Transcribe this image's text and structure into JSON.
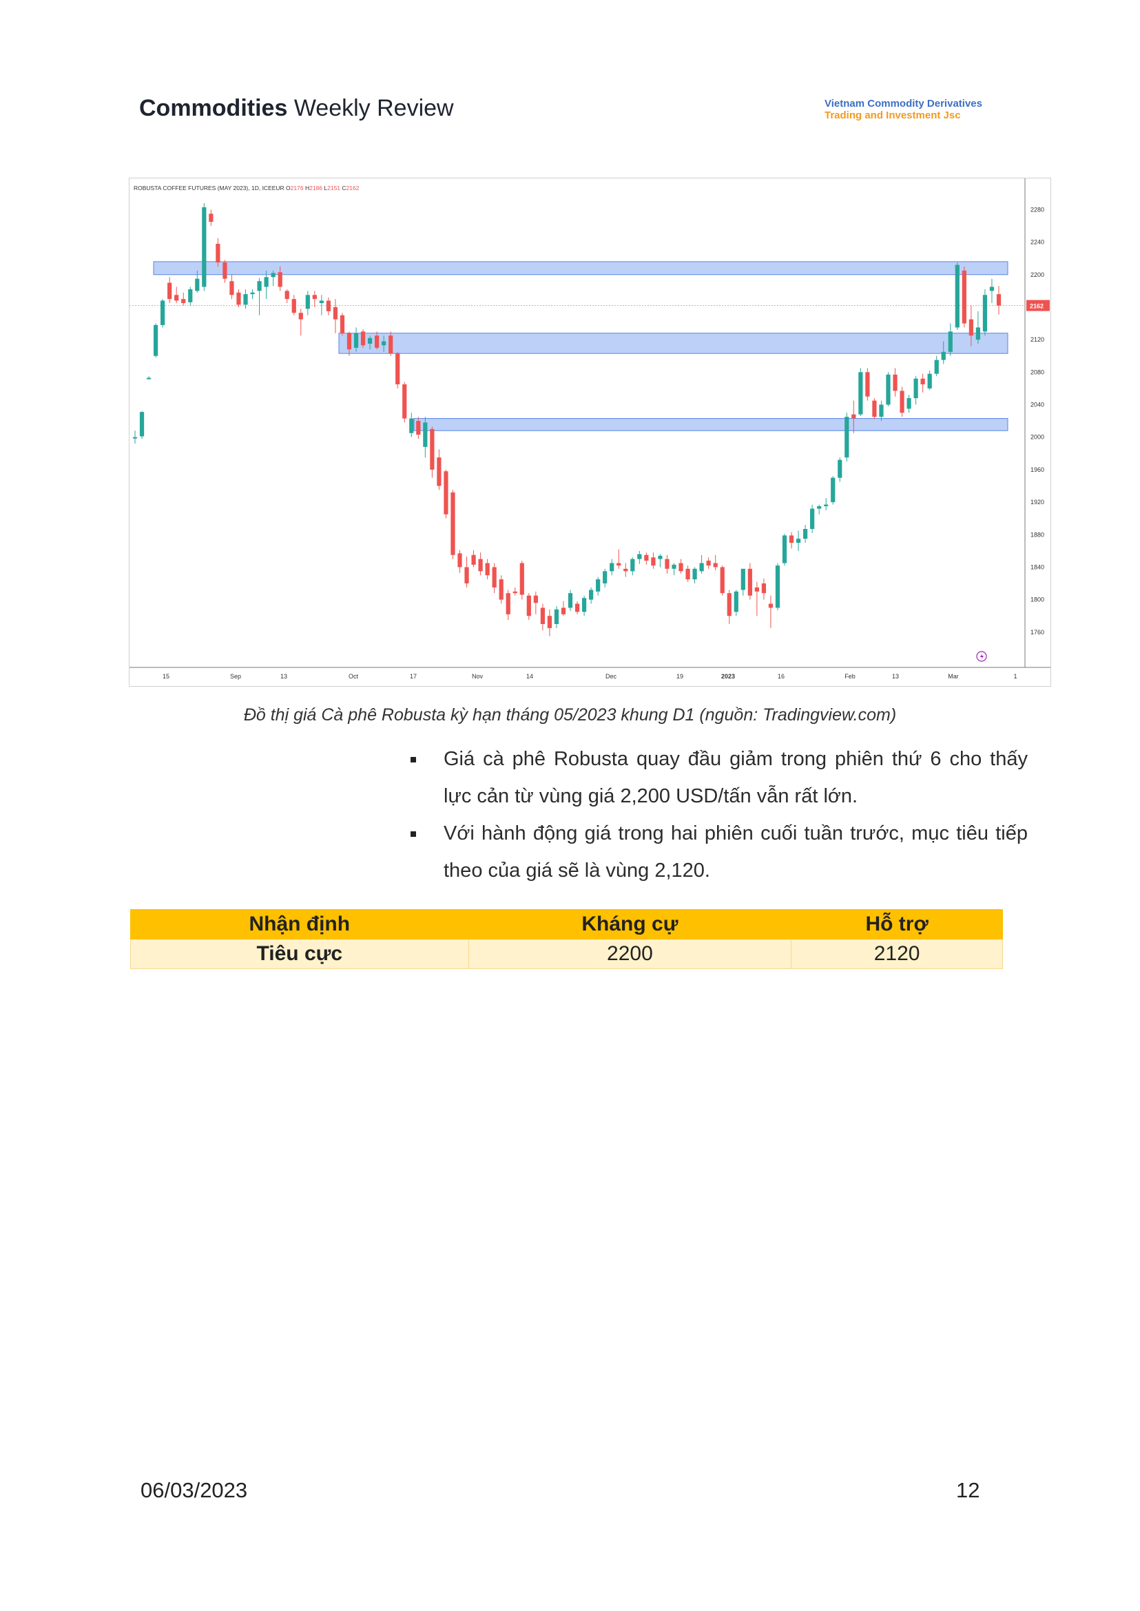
{
  "header": {
    "title_bold": "Commodities",
    "title_rest": "Weekly Review",
    "brand_line1": "Vietnam Commodity Derivatives",
    "brand_line2": "Trading and Investment Jsc"
  },
  "chart_data": {
    "type": "candlestick",
    "title": "ROBUSTA COFFEE FUTURES (MAY 2023), 1D, ICEEUR",
    "ohlc_label": {
      "O": "2176",
      "H": "2186",
      "L": "2151",
      "C": "2162"
    },
    "ylim": [
      1720,
      2310
    ],
    "y_ticks": [
      2280,
      2240,
      2200,
      2160,
      2120,
      2080,
      2040,
      2000,
      1960,
      1920,
      1880,
      1840,
      1800,
      1760
    ],
    "y_tick_labels": [
      "2280",
      "2240",
      "2200",
      "",
      "2120",
      "2080",
      "2040",
      "2000",
      "1960",
      "1920",
      "1880",
      "1840",
      "1800",
      "1760"
    ],
    "x_labels": [
      "15",
      "Sep",
      "13",
      "Oct",
      "17",
      "Nov",
      "14",
      "Dec",
      "19",
      "2023",
      "16",
      "Feb",
      "13",
      "Mar",
      "1"
    ],
    "last_price": 2162,
    "last_price_label": "2162",
    "zones": [
      {
        "from": 2200,
        "to": 2216
      },
      {
        "from": 2103,
        "to": 2128
      },
      {
        "from": 2008,
        "to": 2023
      }
    ],
    "colors": {
      "up": "#26a69a",
      "down": "#ef5350",
      "zone": "#9fbcf5",
      "zone_border": "#5b86e5",
      "price_tag": "#ef5350"
    },
    "series": [
      {
        "values": [
          [
            1999,
            2008,
            1992,
            2000
          ],
          [
            2001,
            2032,
            1998,
            2031
          ],
          [
            2073,
            2075,
            2071,
            2073
          ],
          [
            2100,
            2140,
            2098,
            2138
          ],
          [
            2138,
            2170,
            2135,
            2168
          ],
          [
            2190,
            2197,
            2165,
            2170
          ],
          [
            2175,
            2185,
            2165,
            2168
          ],
          [
            2170,
            2178,
            2162,
            2165
          ],
          [
            2166,
            2185,
            2162,
            2182
          ],
          [
            2180,
            2205,
            2178,
            2195
          ],
          [
            2185,
            2288,
            2180,
            2283
          ],
          [
            2275,
            2280,
            2260,
            2265
          ],
          [
            2238,
            2245,
            2210,
            2215
          ],
          [
            2215,
            2218,
            2190,
            2195
          ],
          [
            2192,
            2200,
            2170,
            2175
          ],
          [
            2178,
            2182,
            2160,
            2163
          ],
          [
            2163,
            2182,
            2158,
            2176
          ],
          [
            2176,
            2182,
            2170,
            2178
          ],
          [
            2180,
            2196,
            2150,
            2192
          ],
          [
            2185,
            2205,
            2170,
            2197
          ],
          [
            2197,
            2205,
            2186,
            2202
          ],
          [
            2203,
            2210,
            2180,
            2185
          ],
          [
            2180,
            2182,
            2165,
            2170
          ],
          [
            2170,
            2175,
            2150,
            2153
          ],
          [
            2153,
            2158,
            2125,
            2145
          ],
          [
            2158,
            2180,
            2150,
            2175
          ],
          [
            2175,
            2180,
            2160,
            2170
          ],
          [
            2165,
            2175,
            2150,
            2168
          ],
          [
            2168,
            2172,
            2150,
            2155
          ],
          [
            2160,
            2170,
            2128,
            2145
          ],
          [
            2150,
            2153,
            2125,
            2128
          ],
          [
            2128,
            2130,
            2100,
            2108
          ],
          [
            2110,
            2135,
            2105,
            2128
          ],
          [
            2130,
            2133,
            2110,
            2113
          ],
          [
            2115,
            2125,
            2108,
            2122
          ],
          [
            2125,
            2130,
            2108,
            2110
          ],
          [
            2113,
            2125,
            2105,
            2118
          ],
          [
            2125,
            2130,
            2100,
            2103
          ],
          [
            2103,
            2105,
            2060,
            2065
          ],
          [
            2065,
            2068,
            2018,
            2023
          ],
          [
            2005,
            2030,
            2000,
            2023
          ],
          [
            2020,
            2025,
            1998,
            2003
          ],
          [
            1988,
            2025,
            1975,
            2018
          ],
          [
            2010,
            2013,
            1950,
            1960
          ],
          [
            1975,
            1985,
            1935,
            1940
          ],
          [
            1958,
            1960,
            1900,
            1905
          ],
          [
            1932,
            1935,
            1850,
            1855
          ],
          [
            1857,
            1861,
            1833,
            1840
          ],
          [
            1840,
            1853,
            1815,
            1820
          ],
          [
            1855,
            1861,
            1840,
            1843
          ],
          [
            1850,
            1858,
            1830,
            1835
          ],
          [
            1845,
            1850,
            1825,
            1830
          ],
          [
            1840,
            1845,
            1808,
            1815
          ],
          [
            1825,
            1830,
            1795,
            1800
          ],
          [
            1808,
            1812,
            1775,
            1782
          ],
          [
            1810,
            1815,
            1805,
            1808
          ],
          [
            1845,
            1848,
            1800,
            1806
          ],
          [
            1805,
            1808,
            1775,
            1780
          ],
          [
            1805,
            1810,
            1782,
            1796
          ],
          [
            1790,
            1795,
            1762,
            1770
          ],
          [
            1780,
            1788,
            1755,
            1765
          ],
          [
            1770,
            1792,
            1765,
            1788
          ],
          [
            1790,
            1798,
            1780,
            1782
          ],
          [
            1790,
            1812,
            1786,
            1808
          ],
          [
            1795,
            1798,
            1782,
            1785
          ],
          [
            1785,
            1805,
            1780,
            1802
          ],
          [
            1800,
            1815,
            1795,
            1812
          ],
          [
            1810,
            1828,
            1805,
            1825
          ],
          [
            1820,
            1838,
            1815,
            1835
          ],
          [
            1835,
            1850,
            1830,
            1845
          ],
          [
            1845,
            1862,
            1838,
            1842
          ],
          [
            1838,
            1845,
            1828,
            1835
          ],
          [
            1835,
            1852,
            1830,
            1850
          ],
          [
            1850,
            1860,
            1844,
            1856
          ],
          [
            1855,
            1858,
            1843,
            1848
          ],
          [
            1852,
            1858,
            1838,
            1842
          ],
          [
            1850,
            1856,
            1840,
            1854
          ],
          [
            1850,
            1855,
            1832,
            1838
          ],
          [
            1838,
            1845,
            1830,
            1843
          ],
          [
            1845,
            1850,
            1832,
            1835
          ],
          [
            1838,
            1842,
            1822,
            1825
          ],
          [
            1825,
            1840,
            1820,
            1838
          ],
          [
            1835,
            1855,
            1832,
            1845
          ],
          [
            1848,
            1852,
            1838,
            1842
          ],
          [
            1845,
            1855,
            1836,
            1840
          ],
          [
            1840,
            1842,
            1805,
            1808
          ],
          [
            1808,
            1812,
            1770,
            1780
          ],
          [
            1785,
            1812,
            1780,
            1810
          ],
          [
            1812,
            1828,
            1805,
            1838
          ],
          [
            1838,
            1845,
            1800,
            1805
          ],
          [
            1815,
            1822,
            1780,
            1810
          ],
          [
            1820,
            1826,
            1800,
            1808
          ],
          [
            1795,
            1805,
            1765,
            1790
          ],
          [
            1790,
            1845,
            1787,
            1842
          ],
          [
            1845,
            1881,
            1842,
            1879
          ],
          [
            1879,
            1883,
            1863,
            1870
          ],
          [
            1870,
            1885,
            1860,
            1875
          ],
          [
            1875,
            1892,
            1870,
            1887
          ],
          [
            1887,
            1917,
            1882,
            1912
          ],
          [
            1912,
            1917,
            1905,
            1915
          ],
          [
            1915,
            1925,
            1910,
            1917
          ],
          [
            1920,
            1952,
            1917,
            1950
          ],
          [
            1950,
            1975,
            1945,
            1972
          ],
          [
            1975,
            2030,
            1970,
            2025
          ],
          [
            2028,
            2045,
            2005,
            2023
          ],
          [
            2028,
            2085,
            2026,
            2080
          ],
          [
            2080,
            2085,
            2045,
            2050
          ],
          [
            2045,
            2048,
            2022,
            2025
          ],
          [
            2025,
            2045,
            2020,
            2040
          ],
          [
            2040,
            2080,
            2038,
            2077
          ],
          [
            2077,
            2085,
            2050,
            2057
          ],
          [
            2057,
            2062,
            2025,
            2030
          ],
          [
            2035,
            2052,
            2030,
            2048
          ],
          [
            2048,
            2075,
            2040,
            2072
          ],
          [
            2072,
            2078,
            2055,
            2065
          ],
          [
            2060,
            2082,
            2058,
            2078
          ],
          [
            2078,
            2100,
            2075,
            2095
          ],
          [
            2095,
            2118,
            2090,
            2105
          ],
          [
            2105,
            2140,
            2100,
            2130
          ],
          [
            2135,
            2215,
            2132,
            2212
          ],
          [
            2205,
            2210,
            2135,
            2140
          ],
          [
            2145,
            2162,
            2112,
            2125
          ],
          [
            2120,
            2155,
            2115,
            2135
          ],
          [
            2130,
            2182,
            2125,
            2175
          ],
          [
            2180,
            2195,
            2165,
            2185
          ],
          [
            2176,
            2186,
            2151,
            2162
          ]
        ]
      }
    ]
  },
  "caption": "Đồ thị  giá Cà phê Robusta kỳ hạn tháng 05/2023 khung D1 (nguồn: Tradingview.com)",
  "bullets": [
    "Giá cà phê Robusta quay đầu giảm trong phiên thứ 6 cho thấy lực cản từ vùng giá 2,200 USD/tấn vẫn rất lớn.",
    "Với hành động giá trong hai phiên cuối tuần trước, mục tiêu tiếp theo của giá sẽ là vùng 2,120."
  ],
  "summary_table": {
    "headers": [
      "Nhận định",
      "Kháng cự",
      "Hỗ trợ"
    ],
    "row": [
      "Tiêu cực",
      "2200",
      "2120"
    ]
  },
  "footer": {
    "date": "06/03/2023",
    "page": "12"
  }
}
